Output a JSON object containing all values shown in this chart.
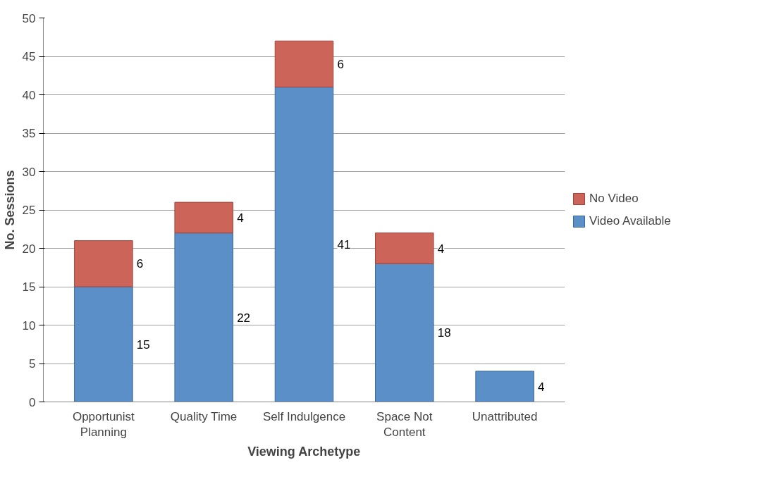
{
  "chart_data": {
    "type": "bar",
    "stacked": true,
    "xlabel": "Viewing Archetype",
    "ylabel": "No. Sessions",
    "categories": [
      "Opportunist Planning",
      "Quality Time",
      "Self Indulgence",
      "Space Not Content",
      "Unattributed"
    ],
    "series": [
      {
        "name": "Video Available",
        "color": "#5b8fc7",
        "values": [
          15,
          22,
          41,
          18,
          4
        ]
      },
      {
        "name": "No Video",
        "color": "#cd6459",
        "values": [
          6,
          4,
          6,
          4,
          null
        ]
      }
    ],
    "ylim": [
      0,
      50
    ],
    "yticks": [
      0,
      5,
      10,
      15,
      20,
      25,
      30,
      35,
      40,
      45,
      50
    ],
    "grid": "y",
    "legend": "right",
    "data_labels": true
  }
}
